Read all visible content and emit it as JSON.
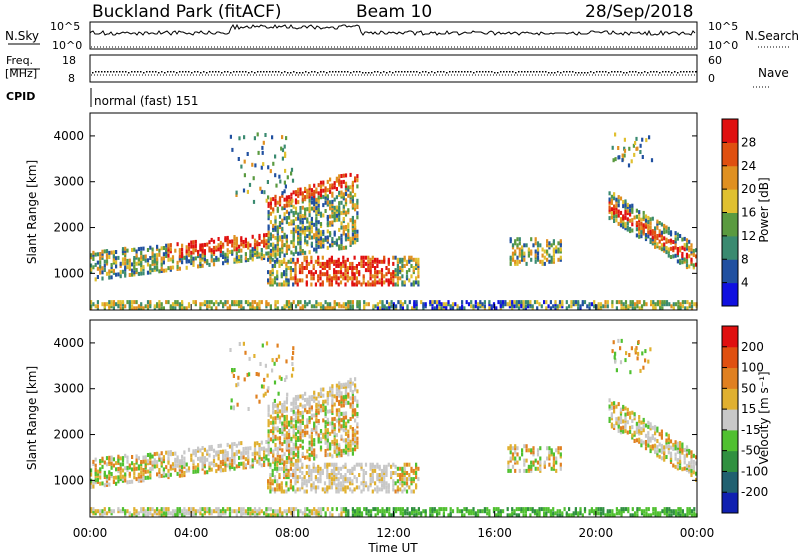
{
  "header": {
    "station": "Buckland Park (fitACF)",
    "beam": "Beam 10",
    "date": "28/Sep/2018"
  },
  "top_panels": {
    "nsky_label": "N.Sky",
    "nsky_ticks": [
      "10^5",
      "10^0"
    ],
    "nsearch_label": "N.Search",
    "nsearch_ticks": [
      "10^5",
      "10^0"
    ],
    "freq_label": "Freq.",
    "freq_unit": "[MHz]",
    "freq_ticks": [
      "18",
      "8"
    ],
    "nave_label": "Nave",
    "nave_ticks": [
      "60",
      "0"
    ],
    "cpid_label": "CPID",
    "mode_text": "normal (fast) 151"
  },
  "chart_data": [
    {
      "type": "heatmap",
      "name": "power",
      "ylabel": "Slant Range [km]",
      "y_ticks": [
        "1000",
        "2000",
        "3000",
        "4000"
      ],
      "ylim": [
        200,
        4500
      ],
      "x_ticks": [
        "00:00",
        "04:00",
        "08:00",
        "12:00",
        "16:00",
        "20:00",
        "00:00"
      ],
      "xlim_hours": [
        0,
        24
      ],
      "colorbar": {
        "label": "Power [dB]",
        "ticks": [
          "4",
          "8",
          "12",
          "16",
          "20",
          "24",
          "28"
        ],
        "range": [
          0,
          32
        ],
        "colors": [
          "#1010e0",
          "#2050a0",
          "#3a8a70",
          "#5a9a40",
          "#e0c030",
          "#e09020",
          "#e05010",
          "#e01010"
        ]
      },
      "features": [
        {
          "desc": "ground scatter band",
          "start_h": 0,
          "end_h": 24,
          "range_km": [
            300,
            450
          ]
        },
        {
          "desc": "morning echoes",
          "start_h": 0,
          "end_h": 10.5,
          "range_km_start": [
            900,
            1600
          ],
          "range_km_end": [
            2600,
            3300
          ]
        },
        {
          "desc": "midday echoes",
          "start_h": 7,
          "end_h": 13,
          "range_km": [
            800,
            1400
          ]
        },
        {
          "desc": "afternoon echoes",
          "start_h": 16.5,
          "end_h": 18.5,
          "range_km": [
            1200,
            1800
          ]
        },
        {
          "desc": "evening echoes",
          "start_h": 20.5,
          "end_h": 24,
          "range_km_start": [
            2200,
            2800
          ],
          "range_km_end": [
            1200,
            1600
          ]
        }
      ]
    },
    {
      "type": "heatmap",
      "name": "velocity",
      "ylabel": "Slant Range [km]",
      "y_ticks": [
        "1000",
        "2000",
        "3000",
        "4000"
      ],
      "ylim": [
        200,
        4500
      ],
      "x_ticks": [
        "00:00",
        "04:00",
        "08:00",
        "12:00",
        "16:00",
        "20:00",
        "00:00"
      ],
      "xlim_hours": [
        0,
        24
      ],
      "xlabel": "Time UT",
      "colorbar": {
        "label": "Velocity [m s⁻¹]",
        "ticks": [
          "200",
          "100",
          "50",
          "15",
          "-15",
          "-50",
          "-100",
          "-200"
        ],
        "range": [
          -250,
          250
        ],
        "colors": [
          "#1020b0",
          "#206070",
          "#309040",
          "#50c030",
          "#c8c8c8",
          "#e0b030",
          "#e08020",
          "#e05010",
          "#e01010"
        ]
      }
    }
  ]
}
